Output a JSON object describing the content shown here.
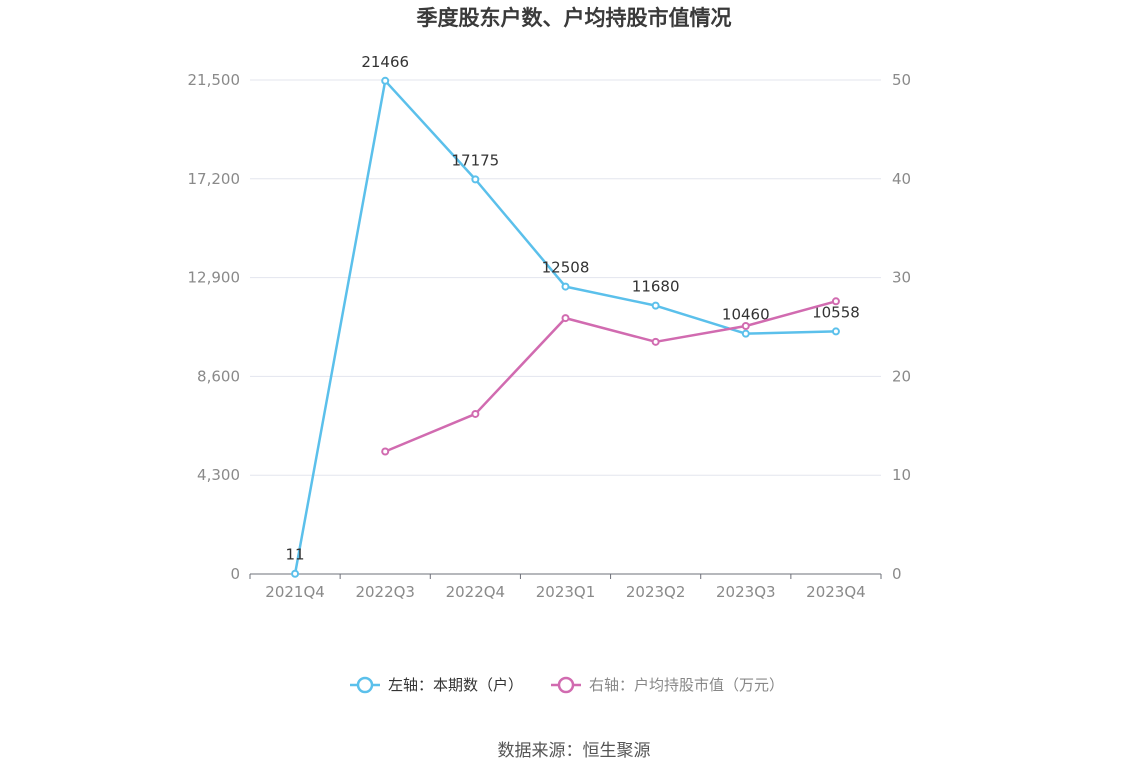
{
  "title": "季度股东户数、户均持股市值情况",
  "source": "数据来源：恒生聚源",
  "colors": {
    "left": "#5BC0EB",
    "right": "#D16BB0",
    "grid": "#E3E5EE",
    "axis": "#6E7079"
  },
  "chart_data": {
    "type": "line",
    "categories": [
      "2021Q4",
      "2022Q3",
      "2022Q4",
      "2023Q1",
      "2023Q2",
      "2023Q3",
      "2023Q4"
    ],
    "y_left": {
      "ticks": [
        "0",
        "4,300",
        "8,600",
        "12,900",
        "17,200",
        "21,500"
      ],
      "lim": [
        0,
        21500
      ]
    },
    "y_right": {
      "ticks": [
        "0",
        "10",
        "20",
        "30",
        "40",
        "50"
      ],
      "lim": [
        0,
        50
      ]
    },
    "series": [
      {
        "name": "左轴：本期数（户）",
        "axis": "left",
        "values": [
          11,
          21466,
          17175,
          12508,
          11680,
          10460,
          10558
        ],
        "labels": [
          "11",
          "21466",
          "17175",
          "12508",
          "11680",
          "10460",
          "10558"
        ]
      },
      {
        "name": "右轴：户均持股市值（万元）",
        "axis": "right",
        "values": [
          null,
          12.4,
          16.2,
          25.9,
          23.5,
          25.1,
          27.6
        ]
      }
    ],
    "legend": "bottom-center",
    "grid": true
  }
}
